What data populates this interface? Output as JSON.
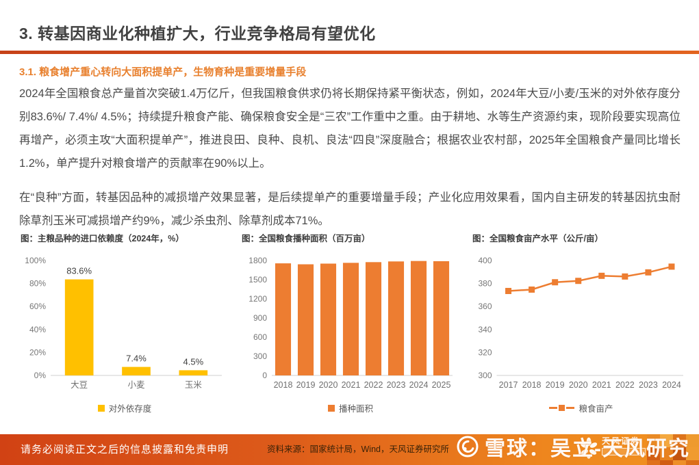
{
  "page": {
    "title": "3. 转基因商业化种植扩大，行业竞争格局有望优化",
    "subtitle": "3.1. 粮食增产重心转向大面积提单产，生物育种是重要增量手段",
    "paragraphs": [
      "2024年全国粮食总产量首次突破1.4万亿斤，但我国粮食供求仍将长期保持紧平衡状态，例如，2024年大豆/小麦/玉米的对外依存度分别83.6%/ 7.4%/ 4.5%；持续提升粮食产能、确保粮食安全是“三农”工作重中之重。由于耕地、水等生产资源约束，现阶段要实现高位再增产，必须主攻“大面积提单产”，推进良田、良种、良机、良法“四良”深度融合；根据农业农村部，2025年全国粮食产量同比增长1.2%，单产提升对粮食增产的贡献率在90%以上。",
      "在“良种”方面，转基因品种的减损增产效果显著，是后续提单产的重要增量手段；产业化应用效果看，国内自主研发的转基因抗虫耐除草剂玉米可减损增产约9%，减少杀虫剂、除草剂成本71%。"
    ]
  },
  "footer": {
    "disclaimer": "请务必阅读正文之后的信息披露和免责申明",
    "source": "资料来源：国家统计局，Wind，天风证券研究所",
    "watermark": "雪球：吴立-天风研究",
    "brand": "天风证券"
  },
  "colors": {
    "bar_yellow": "#FFC000",
    "accent_orange": "#ED7D31",
    "divider_orange_red": "#D54E1E",
    "title_gray": "#414141",
    "subtitle_orange": "#E8802E"
  },
  "chart_data": [
    {
      "type": "bar",
      "title": "图：主粮品种的进口依赖度（2024年，%）",
      "categories": [
        "大豆",
        "小麦",
        "玉米"
      ],
      "values": [
        83.6,
        7.4,
        4.5
      ],
      "data_labels": [
        "83.6%",
        "7.4%",
        "4.5%"
      ],
      "ylim": [
        0,
        100
      ],
      "ytick_step": 20,
      "ytick_suffix": "%",
      "grid": false,
      "legend": [
        "对外依存度"
      ],
      "legend_position": "bottom",
      "color": "#FFC000"
    },
    {
      "type": "bar",
      "title": "图：全国粮食播种面积（百万亩）",
      "categories": [
        "2018",
        "2019",
        "2020",
        "2021",
        "2022",
        "2023",
        "2024",
        "2025"
      ],
      "values": [
        1756,
        1741,
        1752,
        1764,
        1775,
        1786,
        1793,
        1790
      ],
      "ylim": [
        0,
        1800
      ],
      "ytick_step": 300,
      "ytick_suffix": "",
      "grid": false,
      "legend": [
        "播种面积"
      ],
      "legend_position": "bottom",
      "color": "#ED7D31"
    },
    {
      "type": "line",
      "title": "图：全国粮食亩产水平（公斤/亩）",
      "categories": [
        "2017",
        "2018",
        "2019",
        "2020",
        "2021",
        "2022",
        "2023",
        "2024"
      ],
      "values": [
        373.5,
        374.7,
        381.1,
        382.3,
        386.7,
        386.1,
        389.7,
        394.7
      ],
      "ylim": [
        300,
        400
      ],
      "ytick_step": 20,
      "ytick_suffix": "",
      "grid": false,
      "legend": [
        "粮食亩产"
      ],
      "legend_position": "bottom",
      "color": "#ED7D31"
    }
  ]
}
